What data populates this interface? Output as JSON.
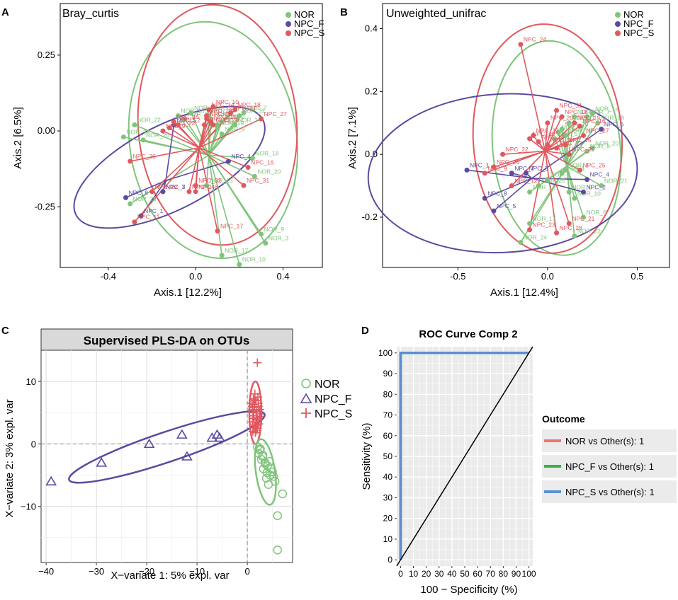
{
  "panel_a": {
    "panel_letter": "A",
    "chart_data": {
      "type": "scatter",
      "title": "Bray_curtis",
      "xlabel": "Axis.1   [12.2%]",
      "ylabel": "Axis.2   [6.5%]",
      "xlim": [
        -0.62,
        0.58
      ],
      "ylim": [
        -0.45,
        0.42
      ],
      "xticks": [
        -0.4,
        0.0,
        0.4
      ],
      "xtick_labels": [
        "-0.4",
        "0.0",
        "0.4"
      ],
      "yticks": [
        -0.25,
        0.0,
        0.25
      ],
      "ytick_labels": [
        "-0.25",
        "0.00",
        "0.25"
      ],
      "legend": [
        "NOR",
        "NPC_F",
        "NPC_S"
      ],
      "centers": {
        "NOR": [
          0.08,
          0.03
        ],
        "NPC_F": [
          -0.2,
          -0.08
        ],
        "NPC_S": [
          0.1,
          0.05
        ]
      },
      "points": [
        {
          "g": "NOR",
          "x": 0.06,
          "y": 0.05,
          "label": "NOR_23"
        },
        {
          "g": "NOR",
          "x": 0.07,
          "y": 0.04,
          "label": "NOR_5"
        },
        {
          "g": "NOR",
          "x": 0.12,
          "y": 0.03,
          "label": "NOR_2"
        },
        {
          "g": "NOR",
          "x": 0.1,
          "y": 0.02,
          "label": "NOR_1"
        },
        {
          "g": "NOR",
          "x": 0.22,
          "y": 0.06,
          "label": "NOR_7"
        },
        {
          "g": "NOR",
          "x": 0.2,
          "y": 0.05,
          "label": "NOR_11"
        },
        {
          "g": "NOR",
          "x": -0.05,
          "y": 0.04,
          "label": "NOR_12"
        },
        {
          "g": "NOR",
          "x": -0.02,
          "y": 0.06,
          "label": "NOR_21"
        },
        {
          "g": "NOR",
          "x": -0.08,
          "y": 0.05,
          "label": "NOR_16"
        },
        {
          "g": "NOR",
          "x": 0.18,
          "y": 0.02,
          "label": "NOR_14"
        },
        {
          "g": "NOR",
          "x": 0.1,
          "y": 0.01,
          "label": "NOR_19"
        },
        {
          "g": "NOR",
          "x": 0.12,
          "y": -0.01,
          "label": "NOR_8"
        },
        {
          "g": "NOR",
          "x": -0.28,
          "y": 0.02,
          "label": "NOR_22"
        },
        {
          "g": "NOR",
          "x": -0.33,
          "y": -0.02,
          "label": "NOR_24"
        },
        {
          "g": "NOR",
          "x": -0.24,
          "y": -0.03,
          "label": "NOR_26"
        },
        {
          "g": "NOR",
          "x": 0.26,
          "y": -0.09,
          "label": "NOR_18"
        },
        {
          "g": "NOR",
          "x": 0.27,
          "y": -0.15,
          "label": "NOR_20"
        },
        {
          "g": "NOR",
          "x": 0.05,
          "y": -0.18,
          "label": "NOR_13"
        },
        {
          "g": "NOR",
          "x": -0.3,
          "y": -0.24,
          "label": "NOR_25"
        },
        {
          "g": "NOR",
          "x": 0.3,
          "y": -0.34,
          "label": "NOR_9"
        },
        {
          "g": "NOR",
          "x": 0.32,
          "y": -0.37,
          "label": "NOR_3"
        },
        {
          "g": "NOR",
          "x": 0.12,
          "y": -0.41,
          "label": "NOR_17"
        },
        {
          "g": "NOR",
          "x": 0.2,
          "y": -0.44,
          "label": "NOR_10"
        },
        {
          "g": "NPC_F",
          "x": -0.1,
          "y": 0.02,
          "label": "NPC_5"
        },
        {
          "g": "NPC_F",
          "x": 0.15,
          "y": -0.1,
          "label": "NPC_4"
        },
        {
          "g": "NPC_F",
          "x": -0.15,
          "y": -0.2,
          "label": "NPC_7"
        },
        {
          "g": "NPC_F",
          "x": -0.15,
          "y": -0.2,
          "label": "NPC_3"
        },
        {
          "g": "NPC_F",
          "x": -0.32,
          "y": -0.22,
          "label": "NPC_8"
        },
        {
          "g": "NPC_F",
          "x": -0.25,
          "y": -0.28,
          "label": "NPC_1"
        },
        {
          "g": "NPC_S",
          "x": 0.08,
          "y": 0.08,
          "label": "NPC_10"
        },
        {
          "g": "NPC_S",
          "x": 0.06,
          "y": 0.07,
          "label": "NPC_14"
        },
        {
          "g": "NPC_S",
          "x": 0.05,
          "y": 0.05,
          "label": "NPC_28"
        },
        {
          "g": "NPC_S",
          "x": 0.18,
          "y": 0.07,
          "label": "NPC_18"
        },
        {
          "g": "NPC_S",
          "x": 0.16,
          "y": 0.06,
          "label": "NPC_21"
        },
        {
          "g": "NPC_S",
          "x": 0.05,
          "y": 0.04,
          "label": "NPC_20"
        },
        {
          "g": "NPC_S",
          "x": 0.07,
          "y": 0.03,
          "label": "NPC_19"
        },
        {
          "g": "NPC_S",
          "x": 0.08,
          "y": 0.02,
          "label": "NPC_29"
        },
        {
          "g": "NPC_S",
          "x": -0.08,
          "y": 0.02,
          "label": "NPC_2"
        },
        {
          "g": "NPC_S",
          "x": 0.04,
          "y": 0.02,
          "label": "NPC_13"
        },
        {
          "g": "NPC_S",
          "x": -0.1,
          "y": 0.03,
          "label": "NPC_15"
        },
        {
          "g": "NPC_S",
          "x": -0.12,
          "y": 0.01,
          "label": "NPC_22"
        },
        {
          "g": "NPC_S",
          "x": -0.15,
          "y": 0.0,
          "label": "NPC_9"
        },
        {
          "g": "NPC_S",
          "x": 0.3,
          "y": 0.04,
          "label": "NPC_27"
        },
        {
          "g": "NPC_S",
          "x": 0.24,
          "y": -0.12,
          "label": "NPC_16"
        },
        {
          "g": "NPC_S",
          "x": 0.22,
          "y": -0.18,
          "label": "NPC_31"
        },
        {
          "g": "NPC_S",
          "x": 0.0,
          "y": -0.18,
          "label": "NPC_32"
        },
        {
          "g": "NPC_S",
          "x": 0.0,
          "y": -0.2,
          "label": "NPC_6"
        },
        {
          "g": "NPC_S",
          "x": -0.03,
          "y": -0.2,
          "label": "NPC_24"
        },
        {
          "g": "NPC_S",
          "x": -0.3,
          "y": -0.1,
          "label": "NPC_26"
        },
        {
          "g": "NPC_S",
          "x": -0.2,
          "y": -0.2,
          "label": "NPC_12"
        },
        {
          "g": "NPC_S",
          "x": -0.28,
          "y": -0.3,
          "label": "NPC_11"
        },
        {
          "g": "NPC_S",
          "x": 0.1,
          "y": -0.33,
          "label": "NPC_17"
        }
      ]
    }
  },
  "panel_b": {
    "panel_letter": "B",
    "chart_data": {
      "type": "scatter",
      "title": "Unweighted_unifrac",
      "xlabel": "Axis.1   [12.4%]",
      "ylabel": "Axis.2   [7.1%]",
      "xlim": [
        -0.92,
        0.68
      ],
      "ylim": [
        -0.36,
        0.48
      ],
      "xticks": [
        -0.5,
        0.0,
        0.5
      ],
      "xtick_labels": [
        "-0.5",
        "0.0",
        "0.5"
      ],
      "yticks": [
        -0.2,
        0.0,
        0.2,
        0.4
      ],
      "ytick_labels": [
        "-0.2",
        "0.0",
        "0.2",
        "0.4"
      ],
      "legend": [
        "NOR",
        "NPC_F",
        "NPC_S"
      ],
      "points": [
        {
          "g": "NOR",
          "x": 0.15,
          "y": 0.12,
          "label": "NOR_15"
        },
        {
          "g": "NOR",
          "x": 0.12,
          "y": 0.1,
          "label": "NOR_11"
        },
        {
          "g": "NOR",
          "x": 0.25,
          "y": 0.13,
          "label": "NOR_14"
        },
        {
          "g": "NOR",
          "x": 0.22,
          "y": 0.12,
          "label": "NOR_7"
        },
        {
          "g": "NOR",
          "x": 0.28,
          "y": 0.1,
          "label": "NOR_18"
        },
        {
          "g": "NOR",
          "x": 0.08,
          "y": 0.08,
          "label": "NOR_26"
        },
        {
          "g": "NOR",
          "x": 0.06,
          "y": 0.07,
          "label": "NOR_16"
        },
        {
          "g": "NOR",
          "x": 0.1,
          "y": 0.06,
          "label": "NOR_19"
        },
        {
          "g": "NOR",
          "x": 0.04,
          "y": 0.05,
          "label": "NOR_5"
        },
        {
          "g": "NOR",
          "x": 0.25,
          "y": 0.02,
          "label": "NOR_20"
        },
        {
          "g": "NOR",
          "x": 0.22,
          "y": 0.01,
          "label": "NOR_8"
        },
        {
          "g": "NOR",
          "x": 0.1,
          "y": -0.05,
          "label": "NOR_3"
        },
        {
          "g": "NOR",
          "x": 0.08,
          "y": -0.06,
          "label": "NOR_1"
        },
        {
          "g": "NOR",
          "x": 0.0,
          "y": -0.08,
          "label": "NOR_2"
        },
        {
          "g": "NOR",
          "x": -0.05,
          "y": -0.1,
          "label": "NOR_25"
        },
        {
          "g": "NOR",
          "x": -0.1,
          "y": -0.12,
          "label": "NOR_12"
        },
        {
          "g": "NOR",
          "x": 0.12,
          "y": -0.12,
          "label": "NOR_9"
        },
        {
          "g": "NOR",
          "x": 0.15,
          "y": -0.14,
          "label": "NOR_10"
        },
        {
          "g": "NOR",
          "x": 0.3,
          "y": -0.1,
          "label": "NOR_21"
        },
        {
          "g": "NOR",
          "x": 0.2,
          "y": -0.2,
          "label": "NOR_6"
        },
        {
          "g": "NOR",
          "x": -0.1,
          "y": -0.22,
          "label": "NOR_17"
        },
        {
          "g": "NOR",
          "x": 0.15,
          "y": -0.26,
          "label": "NOR_22"
        },
        {
          "g": "NOR",
          "x": -0.15,
          "y": -0.28,
          "label": "NOR_24"
        },
        {
          "g": "NPC_F",
          "x": 0.3,
          "y": 0.08,
          "label": "NPC_6"
        },
        {
          "g": "NPC_F",
          "x": -0.45,
          "y": -0.05,
          "label": "NPC_1"
        },
        {
          "g": "NPC_F",
          "x": -0.2,
          "y": -0.06,
          "label": "NPC_7"
        },
        {
          "g": "NPC_F",
          "x": -0.12,
          "y": -0.06,
          "label": "NPC_3"
        },
        {
          "g": "NPC_F",
          "x": 0.22,
          "y": -0.08,
          "label": "NPC_4"
        },
        {
          "g": "NPC_F",
          "x": 0.2,
          "y": -0.12,
          "label": "NPC_2"
        },
        {
          "g": "NPC_F",
          "x": -0.35,
          "y": -0.14,
          "label": "NPC_8"
        },
        {
          "g": "NPC_F",
          "x": -0.3,
          "y": -0.18,
          "label": "NPC_5"
        },
        {
          "g": "NPC_S",
          "x": -0.15,
          "y": 0.35,
          "label": "NPC_24"
        },
        {
          "g": "NPC_S",
          "x": 0.05,
          "y": 0.14,
          "label": "NPC_31"
        },
        {
          "g": "NPC_S",
          "x": 0.08,
          "y": 0.12,
          "label": "NPC_18"
        },
        {
          "g": "NPC_S",
          "x": 0.15,
          "y": 0.1,
          "label": "NPC_19"
        },
        {
          "g": "NPC_S",
          "x": 0.0,
          "y": 0.1,
          "label": "NPC_20"
        },
        {
          "g": "NPC_S",
          "x": 0.18,
          "y": 0.09,
          "label": "NPC_16"
        },
        {
          "g": "NPC_S",
          "x": 0.2,
          "y": 0.06,
          "label": "NPC_27"
        },
        {
          "g": "NPC_S",
          "x": -0.08,
          "y": 0.06,
          "label": "NPC_32"
        },
        {
          "g": "NPC_S",
          "x": -0.1,
          "y": 0.05,
          "label": "NPC_10"
        },
        {
          "g": "NPC_S",
          "x": -0.05,
          "y": 0.04,
          "label": "NPC_14"
        },
        {
          "g": "NPC_S",
          "x": 0.0,
          "y": 0.03,
          "label": "NPC_11"
        },
        {
          "g": "NPC_S",
          "x": 0.05,
          "y": 0.02,
          "label": "NPC_13"
        },
        {
          "g": "NPC_S",
          "x": 0.1,
          "y": 0.03,
          "label": "NPC_15"
        },
        {
          "g": "NPC_S",
          "x": 0.12,
          "y": 0.0,
          "label": "NPC_29"
        },
        {
          "g": "NPC_S",
          "x": -0.25,
          "y": 0.0,
          "label": "NPC_22"
        },
        {
          "g": "NPC_S",
          "x": -0.3,
          "y": -0.04,
          "label": "NPC_26"
        },
        {
          "g": "NPC_S",
          "x": -0.35,
          "y": -0.06,
          "label": "NPC_9"
        },
        {
          "g": "NPC_S",
          "x": -0.2,
          "y": -0.1,
          "label": "NPC_12"
        },
        {
          "g": "NPC_S",
          "x": 0.18,
          "y": -0.05,
          "label": "NPC_25"
        },
        {
          "g": "NPC_S",
          "x": 0.12,
          "y": -0.22,
          "label": "NPC_21"
        },
        {
          "g": "NPC_S",
          "x": -0.1,
          "y": -0.24,
          "label": "NPC_23"
        },
        {
          "g": "NPC_S",
          "x": 0.05,
          "y": -0.25,
          "label": "NPC_28"
        }
      ]
    }
  },
  "panel_c": {
    "panel_letter": "C",
    "chart_data": {
      "type": "scatter",
      "title": "Supervised PLS-DA on OTUs",
      "xlabel": "X−variate 1: 5% expl. var",
      "ylabel": "X−variate 2: 3% expl. var",
      "xlim": [
        -41,
        9
      ],
      "ylim": [
        -19,
        15
      ],
      "xticks": [
        -40,
        -30,
        -20,
        -10,
        0
      ],
      "xtick_labels": [
        "−40",
        "−30",
        "−20",
        "−10",
        "0"
      ],
      "yticks": [
        -10,
        0,
        10
      ],
      "ytick_labels": [
        "−10",
        "0",
        "10"
      ],
      "legend": [
        "NOR",
        "NPC_F",
        "NPC_S"
      ],
      "npc_f_points": [
        [
          -39,
          -6
        ],
        [
          -29,
          -3
        ],
        [
          -19.5,
          0
        ],
        [
          -13,
          1.5
        ],
        [
          -12,
          -2
        ],
        [
          -7,
          1
        ],
        [
          -6,
          1.5
        ],
        [
          -5.5,
          1
        ]
      ],
      "npc_s_points": [
        [
          2,
          13
        ],
        [
          1,
          6
        ],
        [
          1.5,
          7
        ],
        [
          1.2,
          5
        ],
        [
          1.8,
          4
        ],
        [
          2.2,
          6.5
        ],
        [
          1,
          3.5
        ],
        [
          1.5,
          8
        ],
        [
          2,
          2.5
        ],
        [
          1.3,
          4.5
        ],
        [
          2.5,
          5.5
        ],
        [
          1.7,
          3
        ],
        [
          1.1,
          2
        ],
        [
          2.1,
          7.5
        ],
        [
          1.4,
          5.8
        ],
        [
          1.9,
          4.2
        ],
        [
          2.3,
          3.2
        ],
        [
          0.9,
          6.5
        ],
        [
          1.6,
          1.8
        ],
        [
          2.4,
          4.8
        ],
        [
          1.2,
          7.2
        ],
        [
          1.8,
          5.2
        ],
        [
          2.0,
          3.8
        ],
        [
          1.5,
          2.8
        ],
        [
          1.1,
          4.1
        ],
        [
          2.2,
          6.0
        ],
        [
          1.7,
          6.9
        ],
        [
          1.3,
          3.0
        ],
        [
          2.6,
          4.4
        ],
        [
          1.0,
          5.5
        ],
        [
          1.9,
          2.2
        ],
        [
          1.4,
          6.3
        ]
      ],
      "nor_points": [
        [
          6,
          -17
        ],
        [
          6,
          -11.5
        ],
        [
          7,
          -8
        ],
        [
          5.5,
          -6
        ],
        [
          5,
          -4.5
        ],
        [
          4.5,
          -5
        ],
        [
          4,
          -3.5
        ],
        [
          3.5,
          -3
        ],
        [
          3,
          -2
        ],
        [
          2.5,
          -1
        ],
        [
          2,
          -0.5
        ],
        [
          3.2,
          -4
        ],
        [
          3.8,
          -5.5
        ],
        [
          4.2,
          -6.5
        ],
        [
          2.8,
          -2.5
        ],
        [
          2.2,
          -1.5
        ],
        [
          3.6,
          -3.2
        ],
        [
          4.8,
          -4
        ],
        [
          2.6,
          -0.8
        ],
        [
          3.1,
          -1.8
        ],
        [
          4.4,
          -2.8
        ],
        [
          5.2,
          -5.2
        ],
        [
          3.9,
          -4.6
        ]
      ],
      "ellipses": {
        "NPC_F": {
          "cx": -16,
          "cy": -0.5,
          "rx": 20.5,
          "ry": 2.4,
          "angle_data_slope": 0.27
        },
        "NPC_S": {
          "cx": 1.6,
          "cy": 5,
          "rx": 1.2,
          "ry": 5
        },
        "NOR": {
          "cx": 3.6,
          "cy": -4.5,
          "rx": 1.9,
          "ry": 5.3
        }
      }
    }
  },
  "panel_d": {
    "panel_letter": "D",
    "chart_data": {
      "type": "line",
      "title": "ROC Curve Comp 2",
      "xlabel": "100 − Specificity (%)",
      "ylabel": "Sensitivity (%)",
      "xlim": [
        -3,
        103
      ],
      "ylim": [
        -3,
        103
      ],
      "xticks": [
        0,
        10,
        20,
        30,
        40,
        50,
        60,
        70,
        80,
        90,
        100
      ],
      "xtick_labels": [
        "0",
        "10",
        "20",
        "30",
        "40",
        "50",
        "60",
        "70",
        "80",
        "90",
        "100"
      ],
      "yticks": [
        0,
        10,
        20,
        30,
        40,
        50,
        60,
        70,
        80,
        90,
        100
      ],
      "ytick_labels": [
        "0",
        "10",
        "20",
        "30",
        "40",
        "50",
        "60",
        "70",
        "80",
        "90",
        "100"
      ],
      "legend_title": "Outcome",
      "series": [
        {
          "name": "NOR vs Other(s): 1",
          "color": "#f0746e",
          "x": [
            0,
            0,
            100
          ],
          "y": [
            0,
            100,
            100
          ]
        },
        {
          "name": "NPC_F vs Other(s): 1",
          "color": "#3cb04a",
          "x": [
            0,
            0,
            100
          ],
          "y": [
            0,
            100,
            100
          ]
        },
        {
          "name": "NPC_S vs Other(s): 1",
          "color": "#5b8fd0",
          "x": [
            0,
            0,
            100
          ],
          "y": [
            0,
            100,
            100
          ]
        }
      ],
      "reference_line": {
        "x": [
          -3,
          103
        ],
        "y": [
          -3,
          103
        ]
      }
    }
  },
  "colors": {
    "NOR": "#7fc47a",
    "NPC_F": "#5b4aa0",
    "NPC_S": "#e0585e"
  }
}
